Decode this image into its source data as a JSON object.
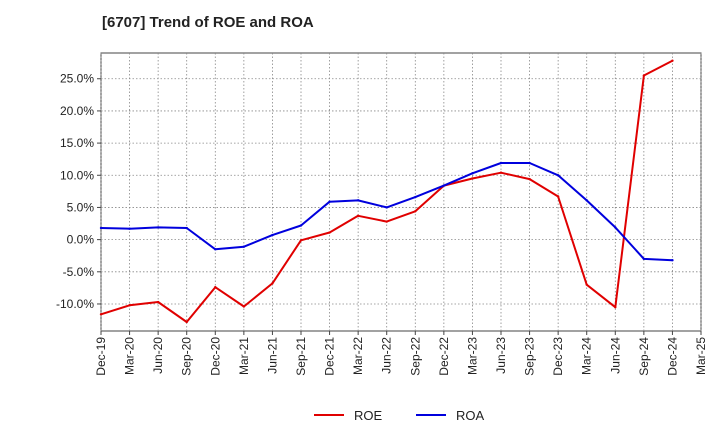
{
  "title": "[6707]  Trend of ROE and ROA",
  "chart_data": {
    "type": "line",
    "title": "[6707]  Trend of ROE and ROA",
    "xlabel": "",
    "ylabel": "",
    "categories": [
      "Dec-19",
      "Mar-20",
      "Jun-20",
      "Sep-20",
      "Dec-20",
      "Mar-21",
      "Jun-21",
      "Sep-21",
      "Dec-21",
      "Mar-22",
      "Jun-22",
      "Sep-22",
      "Dec-22",
      "Mar-23",
      "Jun-23",
      "Sep-23",
      "Dec-23",
      "Mar-24",
      "Jun-24",
      "Sep-24",
      "Dec-24",
      "Mar-25"
    ],
    "x_tick_labels": [
      "Dec-19",
      "Mar-20",
      "Jun-20",
      "Sep-20",
      "Dec-20",
      "Mar-21",
      "Jun-21",
      "Sep-21",
      "Dec-21",
      "Mar-22",
      "Jun-22",
      "Sep-22",
      "Dec-22",
      "Mar-23",
      "Jun-23",
      "Sep-23",
      "Dec-23",
      "Mar-24",
      "Jun-24",
      "Sep-24",
      "Dec-24",
      "Mar-25"
    ],
    "y_ticks": [
      -10,
      -5,
      0,
      5,
      10,
      15,
      20,
      25
    ],
    "y_tick_labels": [
      "-10.0%",
      "-5.0%",
      "0.0%",
      "5.0%",
      "10.0%",
      "15.0%",
      "20.0%",
      "25.0%"
    ],
    "ylim": [
      -14.2,
      29.0
    ],
    "grid": true,
    "legend_position": "bottom-center",
    "series": [
      {
        "name": "ROE",
        "color": "#e00000",
        "values": [
          -11.6,
          -10.2,
          -9.7,
          -12.8,
          -7.4,
          -10.4,
          -6.8,
          -0.1,
          1.1,
          3.7,
          2.8,
          4.4,
          8.4,
          9.5,
          10.4,
          9.4,
          6.7,
          -7.0,
          -10.5,
          25.5,
          27.8,
          null
        ]
      },
      {
        "name": "ROA",
        "color": "#0000dd",
        "values": [
          1.8,
          1.7,
          1.9,
          1.8,
          -1.5,
          -1.1,
          0.7,
          2.2,
          5.9,
          6.1,
          5.0,
          6.6,
          8.4,
          10.3,
          11.9,
          11.9,
          10.0,
          6.1,
          1.9,
          -3.0,
          -3.2,
          null
        ]
      }
    ]
  }
}
